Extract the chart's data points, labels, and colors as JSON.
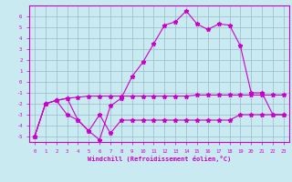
{
  "xlabel": "Windchill (Refroidissement éolien,°C)",
  "background_color": "#c8eaf0",
  "line_color": "#cc00cc",
  "grid_color": "#99bbcc",
  "xlim": [
    -0.5,
    23.5
  ],
  "ylim": [
    -5.5,
    7.0
  ],
  "xticks": [
    0,
    1,
    2,
    3,
    4,
    5,
    6,
    7,
    8,
    9,
    10,
    11,
    12,
    13,
    14,
    15,
    16,
    17,
    18,
    19,
    20,
    21,
    22,
    23
  ],
  "yticks": [
    -5,
    -4,
    -3,
    -2,
    -1,
    0,
    1,
    2,
    3,
    4,
    5,
    6
  ],
  "line1_x": [
    0,
    1,
    2,
    3,
    4,
    5,
    6,
    7,
    8,
    9,
    10,
    11,
    12,
    13,
    14,
    15,
    16,
    17,
    18,
    19,
    20,
    21,
    22,
    23
  ],
  "line1_y": [
    -5.0,
    -2.0,
    -1.7,
    -1.5,
    -1.4,
    -1.3,
    -1.3,
    -1.3,
    -1.3,
    -1.3,
    -1.3,
    -1.3,
    -1.3,
    -1.3,
    -1.3,
    -1.2,
    -1.2,
    -1.2,
    -1.2,
    -1.2,
    -1.2,
    -1.2,
    -1.2,
    -1.2
  ],
  "line2_x": [
    0,
    1,
    2,
    3,
    4,
    5,
    6,
    7,
    8,
    9,
    10,
    11,
    12,
    13,
    14,
    15,
    16,
    17,
    18,
    19,
    20,
    21,
    22,
    23
  ],
  "line2_y": [
    -5.0,
    -2.0,
    -1.7,
    -3.0,
    -3.5,
    -4.5,
    -3.0,
    -4.7,
    -3.5,
    -3.5,
    -3.5,
    -3.5,
    -3.5,
    -3.5,
    -3.5,
    -3.5,
    -3.5,
    -3.5,
    -3.5,
    -3.0,
    -3.0,
    -3.0,
    -3.0,
    -3.0
  ],
  "line3_x": [
    0,
    1,
    2,
    3,
    4,
    5,
    6,
    7,
    8,
    9,
    10,
    11,
    12,
    13,
    14,
    15,
    16,
    17,
    18,
    19,
    20,
    21,
    22,
    23
  ],
  "line3_y": [
    -5.0,
    -2.0,
    -1.7,
    -1.5,
    -3.5,
    -4.5,
    -5.3,
    -2.2,
    -1.5,
    0.5,
    1.8,
    3.5,
    5.2,
    5.5,
    6.5,
    5.3,
    4.8,
    5.3,
    5.2,
    3.3,
    -1.0,
    -1.0,
    -3.0,
    -3.0
  ]
}
